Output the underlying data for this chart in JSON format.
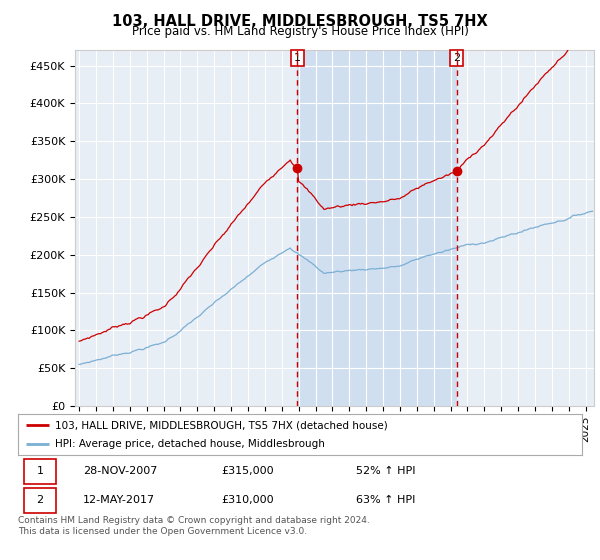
{
  "title": "103, HALL DRIVE, MIDDLESBROUGH, TS5 7HX",
  "subtitle": "Price paid vs. HM Land Registry's House Price Index (HPI)",
  "background_color": "#ffffff",
  "plot_bg_color": "#e8eef5",
  "shade_bg_color": "#d0dff0",
  "ylabel_ticks": [
    "£0",
    "£50K",
    "£100K",
    "£150K",
    "£200K",
    "£250K",
    "£300K",
    "£350K",
    "£400K",
    "£450K"
  ],
  "ytick_values": [
    0,
    50000,
    100000,
    150000,
    200000,
    250000,
    300000,
    350000,
    400000,
    450000
  ],
  "ylim": [
    0,
    470000
  ],
  "xlim_start": 1994.75,
  "xlim_end": 2025.5,
  "year_ticks": [
    1995,
    1996,
    1997,
    1998,
    1999,
    2000,
    2001,
    2002,
    2003,
    2004,
    2005,
    2006,
    2007,
    2008,
    2009,
    2010,
    2011,
    2012,
    2013,
    2014,
    2015,
    2016,
    2017,
    2018,
    2019,
    2020,
    2021,
    2022,
    2023,
    2024,
    2025
  ],
  "sale1_x": 2007.92,
  "sale1_y": 315000,
  "sale1_label": "1",
  "sale2_x": 2017.37,
  "sale2_y": 310000,
  "sale2_label": "2",
  "line_color_red": "#cc0000",
  "line_color_blue": "#7bafd4",
  "vline_color": "#cc0000",
  "marker_color": "#cc0000",
  "legend_label_red": "103, HALL DRIVE, MIDDLESBROUGH, TS5 7HX (detached house)",
  "legend_label_blue": "HPI: Average price, detached house, Middlesbrough",
  "table_row1": [
    "1",
    "28-NOV-2007",
    "£315,000",
    "52% ↑ HPI"
  ],
  "table_row2": [
    "2",
    "12-MAY-2017",
    "£310,000",
    "63% ↑ HPI"
  ],
  "footnote": "Contains HM Land Registry data © Crown copyright and database right 2024.\nThis data is licensed under the Open Government Licence v3.0."
}
